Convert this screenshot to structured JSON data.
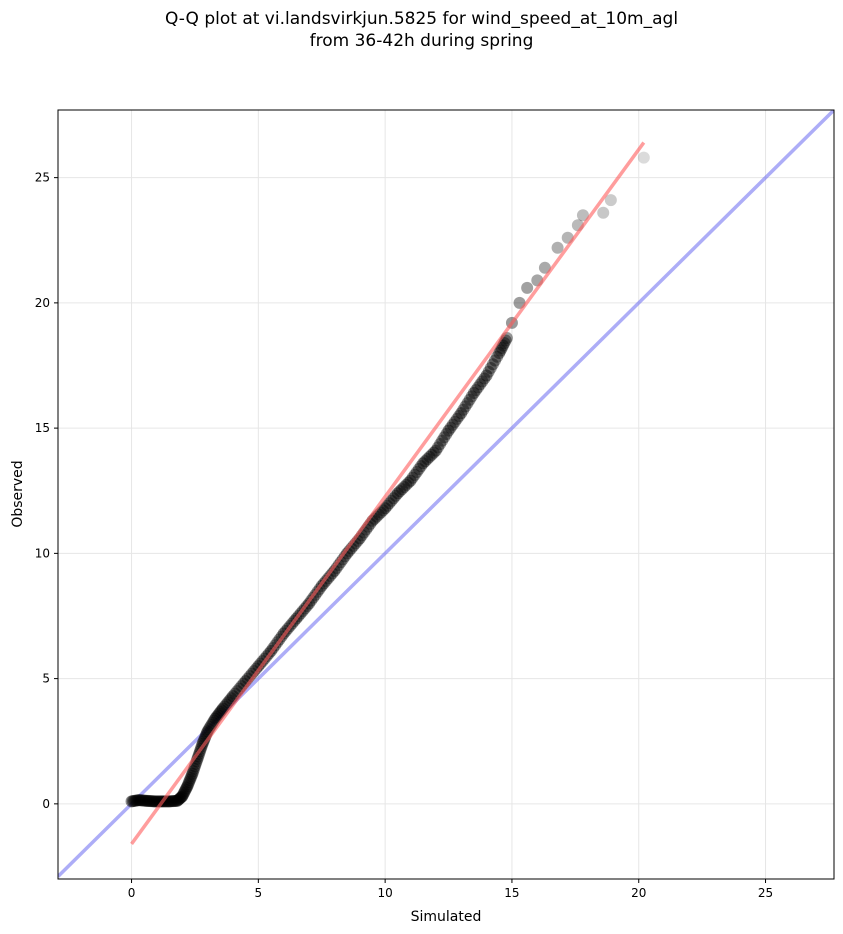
{
  "chart_data": {
    "type": "scatter",
    "title_line1": "Q-Q plot at vi.landsvirkjun.5825 for wind_speed_at_10m_agl",
    "title_line2": "from 36-42h during spring",
    "xlabel": "Simulated",
    "ylabel": "Observed",
    "xlim": [
      -2.9,
      27.7
    ],
    "ylim": [
      -3.0,
      27.7
    ],
    "xticks": [
      0,
      5,
      10,
      15,
      20,
      25
    ],
    "yticks": [
      0,
      5,
      10,
      15,
      20,
      25
    ],
    "xtick_labels": [
      "0",
      "5",
      "10",
      "15",
      "20",
      "25"
    ],
    "ytick_labels": [
      "0",
      "5",
      "10",
      "15",
      "20",
      "25"
    ],
    "grid": true,
    "series": [
      {
        "kind": "scatter",
        "color": "#000000",
        "points": [
          [
            0.0,
            0.1
          ],
          [
            0.3,
            0.15
          ],
          [
            0.6,
            0.12
          ],
          [
            0.9,
            0.1
          ],
          [
            1.2,
            0.1
          ],
          [
            1.5,
            0.1
          ],
          [
            1.8,
            0.12
          ],
          [
            2.0,
            0.3
          ],
          [
            2.2,
            0.7
          ],
          [
            2.4,
            1.2
          ],
          [
            2.6,
            1.8
          ],
          [
            2.8,
            2.4
          ],
          [
            3.0,
            2.9
          ],
          [
            3.3,
            3.4
          ],
          [
            3.6,
            3.8
          ],
          [
            4.0,
            4.3
          ],
          [
            4.5,
            4.9
          ],
          [
            5.0,
            5.5
          ],
          [
            5.5,
            6.1
          ],
          [
            6.0,
            6.8
          ],
          [
            6.5,
            7.4
          ],
          [
            7.0,
            8.0
          ],
          [
            7.5,
            8.7
          ],
          [
            8.0,
            9.3
          ],
          [
            8.5,
            10.0
          ],
          [
            9.0,
            10.6
          ],
          [
            9.5,
            11.3
          ],
          [
            10.0,
            11.8
          ],
          [
            10.5,
            12.4
          ],
          [
            11.0,
            12.9
          ],
          [
            11.5,
            13.6
          ],
          [
            12.0,
            14.1
          ],
          [
            12.5,
            14.9
          ],
          [
            13.0,
            15.6
          ],
          [
            13.5,
            16.4
          ],
          [
            14.0,
            17.1
          ],
          [
            14.5,
            18.0
          ],
          [
            14.8,
            18.6
          ],
          [
            15.0,
            19.2
          ],
          [
            15.3,
            20.0
          ],
          [
            15.6,
            20.6
          ],
          [
            16.0,
            20.9
          ],
          [
            16.3,
            21.4
          ],
          [
            16.8,
            22.2
          ],
          [
            17.2,
            22.6
          ],
          [
            17.6,
            23.1
          ],
          [
            17.8,
            23.5
          ],
          [
            18.6,
            23.6
          ],
          [
            18.9,
            24.1
          ],
          [
            20.2,
            25.8
          ]
        ]
      },
      {
        "kind": "fit-line",
        "color": "#ff5c5c",
        "points": [
          [
            0.0,
            -1.6
          ],
          [
            20.2,
            26.4
          ]
        ]
      },
      {
        "kind": "identity-line",
        "color": "#6a6af0",
        "points": [
          [
            -2.9,
            -2.9
          ],
          [
            27.7,
            27.7
          ]
        ]
      }
    ]
  }
}
